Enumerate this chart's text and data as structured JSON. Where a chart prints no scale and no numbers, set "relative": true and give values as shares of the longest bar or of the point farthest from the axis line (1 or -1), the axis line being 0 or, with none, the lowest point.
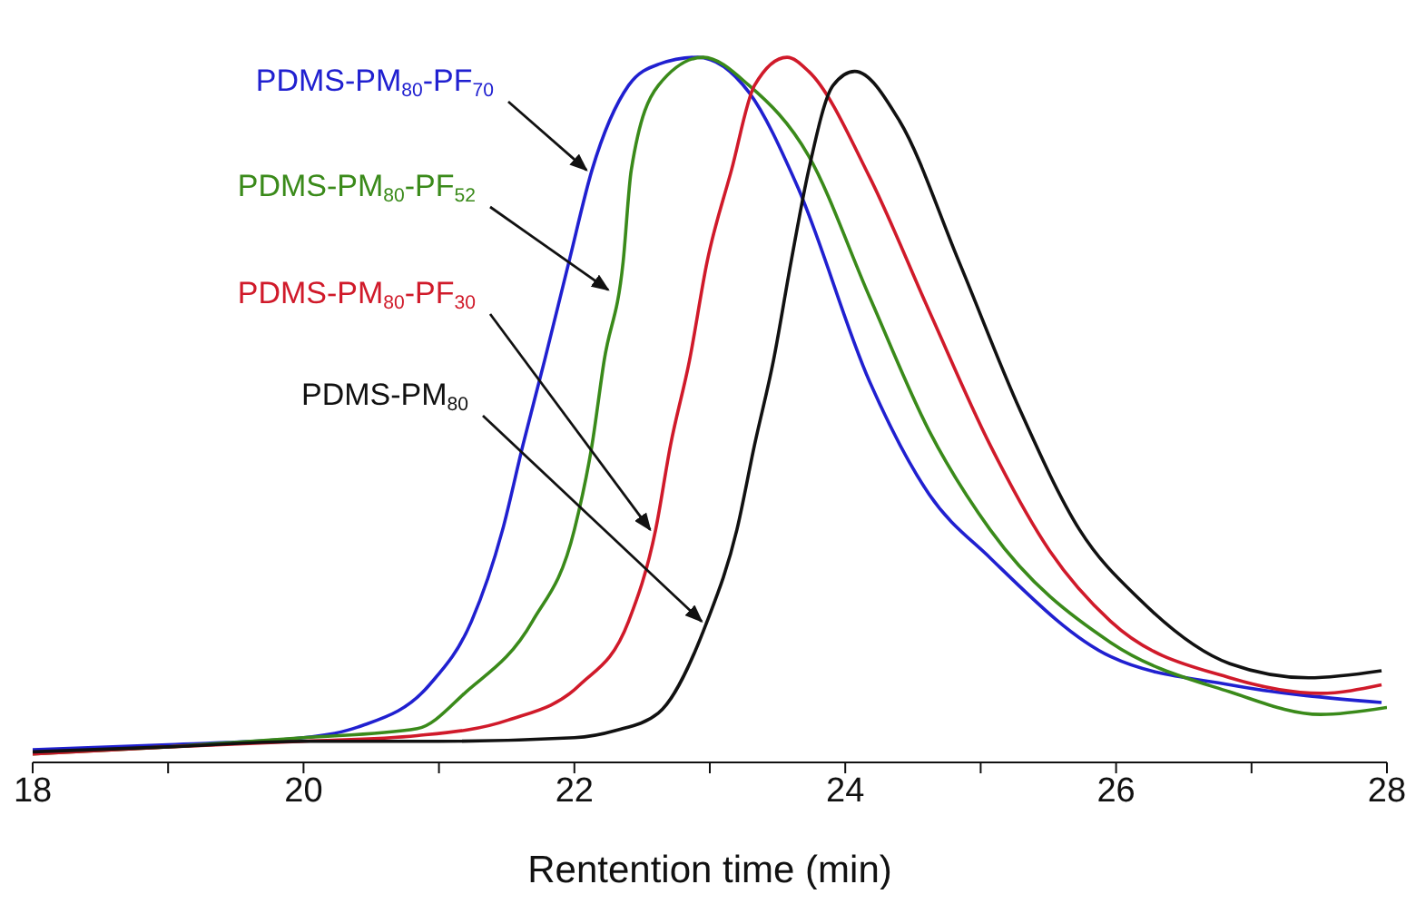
{
  "chart_data": {
    "type": "line",
    "xlabel": "Rentention time (min)",
    "relative": true,
    "xlim": [
      18,
      28
    ],
    "xticks": [
      18,
      {
        "value": 19,
        "label": null
      },
      20,
      {
        "value": 21,
        "label": null
      },
      22,
      {
        "value": 23,
        "label": null
      },
      24,
      {
        "value": 25,
        "label": null
      },
      26,
      {
        "value": 27,
        "label": null
      },
      28
    ],
    "tick_labels": "x",
    "marker": "none",
    "line_style": "solid",
    "series": [
      {
        "color": "#2020d0",
        "x": [
          18,
          19,
          20,
          20.4,
          20.93,
          21.24,
          21.47,
          21.62,
          21.78,
          21.96,
          22.13,
          22.4,
          22.62,
          22.91,
          23.29,
          23.64,
          24.18,
          24.62,
          25.07,
          25.96,
          26.84,
          27.96
        ],
        "values": [
          0.018,
          0.025,
          0.035,
          0.05,
          0.11,
          0.2,
          0.33,
          0.45,
          0.57,
          0.71,
          0.84,
          0.96,
          0.99,
          1.0,
          0.95,
          0.82,
          0.54,
          0.38,
          0.29,
          0.15,
          0.11,
          0.085
        ]
      },
      {
        "color": "#3a8a1a",
        "x": [
          18,
          19,
          20,
          20.84,
          21.2,
          21.69,
          22.0,
          22.13,
          22.22,
          22.36,
          22.42,
          22.62,
          22.95,
          23.29,
          23.73,
          24.18,
          24.62,
          25.07,
          25.96,
          26.84,
          27.51,
          28
        ],
        "values": [
          0.012,
          0.022,
          0.035,
          0.048,
          0.1,
          0.2,
          0.33,
          0.45,
          0.57,
          0.71,
          0.84,
          0.96,
          1.0,
          0.96,
          0.86,
          0.66,
          0.47,
          0.33,
          0.17,
          0.1,
          0.068,
          0.078
        ]
      },
      {
        "color": "#d01a2a",
        "x": [
          18,
          19,
          20,
          20.84,
          21.51,
          22.04,
          22.4,
          22.6,
          22.71,
          22.85,
          22.98,
          23.16,
          23.33,
          23.57,
          23.73,
          24.18,
          24.62,
          25.07,
          25.51,
          25.96,
          26.84,
          27.51,
          27.96
        ],
        "values": [
          0.012,
          0.022,
          0.03,
          0.038,
          0.06,
          0.11,
          0.2,
          0.33,
          0.45,
          0.57,
          0.71,
          0.84,
          0.96,
          1.0,
          0.98,
          0.83,
          0.64,
          0.45,
          0.3,
          0.2,
          0.12,
          0.098,
          0.11
        ]
      },
      {
        "color": "#111111",
        "x": [
          18,
          19,
          20,
          21,
          22,
          22.3,
          22.62,
          22.98,
          23.2,
          23.33,
          23.47,
          23.6,
          23.73,
          23.91,
          24.07,
          24.4,
          24.84,
          25.29,
          25.73,
          26.18,
          26.84,
          27.42,
          27.96
        ],
        "values": [
          0.015,
          0.022,
          0.03,
          0.03,
          0.035,
          0.045,
          0.07,
          0.2,
          0.33,
          0.45,
          0.57,
          0.71,
          0.84,
          0.96,
          0.98,
          0.91,
          0.71,
          0.5,
          0.33,
          0.23,
          0.14,
          0.12,
          0.13
        ]
      }
    ],
    "annotations": [
      {
        "text": "PDMS-PM$_{80}$-PF$_{70}$",
        "x": 22.13,
        "y": 0.84
      },
      {
        "text": "PDMS-PM$_{80}$-PF$_{52}$",
        "x": 22.29,
        "y": 0.67
      },
      {
        "text": "PDMS-PM$_{80}$-PF$_{30}$",
        "x": 22.6,
        "y": 0.33
      },
      {
        "text": "PDMS-PM$_{80}$",
        "x": 22.98,
        "y": 0.2
      }
    ]
  }
}
